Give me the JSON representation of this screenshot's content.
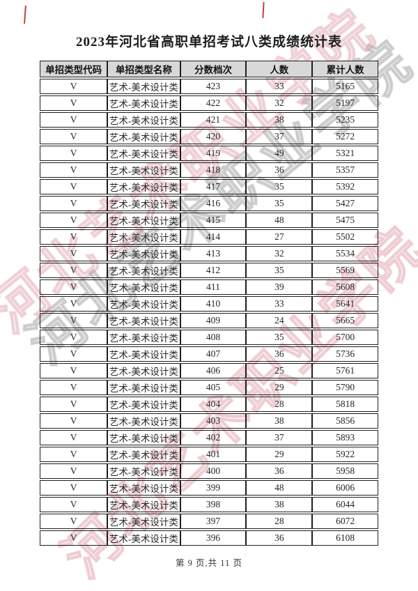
{
  "page": {
    "title": "2023年河北省高职单招考试八类成绩统计表",
    "footer": "第 9 页,共 11 页"
  },
  "watermark": {
    "text": "河北艺术职业学院",
    "gray_color": "#a0a0a0",
    "pink_color": "#db96a0",
    "red_mark_color": "#c04040"
  },
  "table": {
    "headers": [
      "单招类型代码",
      "单招类型名称",
      "分数档次",
      "人数",
      "累计人数"
    ],
    "rows": [
      {
        "code": "V",
        "name": "艺术-美术设计类",
        "score": "423",
        "count": "33",
        "cumulative": "5165"
      },
      {
        "code": "V",
        "name": "艺术-美术设计类",
        "score": "422",
        "count": "32",
        "cumulative": "5197"
      },
      {
        "code": "V",
        "name": "艺术-美术设计类",
        "score": "421",
        "count": "38",
        "cumulative": "5235"
      },
      {
        "code": "V",
        "name": "艺术-美术设计类",
        "score": "420",
        "count": "37",
        "cumulative": "5272"
      },
      {
        "code": "V",
        "name": "艺术-美术设计类",
        "score": "419",
        "count": "49",
        "cumulative": "5321"
      },
      {
        "code": "V",
        "name": "艺术-美术设计类",
        "score": "418",
        "count": "36",
        "cumulative": "5357"
      },
      {
        "code": "V",
        "name": "艺术-美术设计类",
        "score": "417",
        "count": "35",
        "cumulative": "5392"
      },
      {
        "code": "V",
        "name": "艺术-美术设计类",
        "score": "416",
        "count": "35",
        "cumulative": "5427"
      },
      {
        "code": "V",
        "name": "艺术-美术设计类",
        "score": "415",
        "count": "48",
        "cumulative": "5475"
      },
      {
        "code": "V",
        "name": "艺术-美术设计类",
        "score": "414",
        "count": "27",
        "cumulative": "5502"
      },
      {
        "code": "V",
        "name": "艺术-美术设计类",
        "score": "413",
        "count": "32",
        "cumulative": "5534"
      },
      {
        "code": "V",
        "name": "艺术-美术设计类",
        "score": "412",
        "count": "35",
        "cumulative": "5569"
      },
      {
        "code": "V",
        "name": "艺术-美术设计类",
        "score": "411",
        "count": "39",
        "cumulative": "5608"
      },
      {
        "code": "V",
        "name": "艺术-美术设计类",
        "score": "410",
        "count": "33",
        "cumulative": "5641"
      },
      {
        "code": "V",
        "name": "艺术-美术设计类",
        "score": "409",
        "count": "24",
        "cumulative": "5665"
      },
      {
        "code": "V",
        "name": "艺术-美术设计类",
        "score": "408",
        "count": "35",
        "cumulative": "5700"
      },
      {
        "code": "V",
        "name": "艺术-美术设计类",
        "score": "407",
        "count": "36",
        "cumulative": "5736"
      },
      {
        "code": "V",
        "name": "艺术-美术设计类",
        "score": "406",
        "count": "25",
        "cumulative": "5761"
      },
      {
        "code": "V",
        "name": "艺术-美术设计类",
        "score": "405",
        "count": "29",
        "cumulative": "5790"
      },
      {
        "code": "V",
        "name": "艺术-美术设计类",
        "score": "404",
        "count": "28",
        "cumulative": "5818"
      },
      {
        "code": "V",
        "name": "艺术-美术设计类",
        "score": "403",
        "count": "38",
        "cumulative": "5856"
      },
      {
        "code": "V",
        "name": "艺术-美术设计类",
        "score": "402",
        "count": "37",
        "cumulative": "5893"
      },
      {
        "code": "V",
        "name": "艺术-美术设计类",
        "score": "401",
        "count": "29",
        "cumulative": "5922"
      },
      {
        "code": "V",
        "name": "艺术-美术设计类",
        "score": "400",
        "count": "36",
        "cumulative": "5958"
      },
      {
        "code": "V",
        "name": "艺术-美术设计类",
        "score": "399",
        "count": "48",
        "cumulative": "6006"
      },
      {
        "code": "V",
        "name": "艺术-美术设计类",
        "score": "398",
        "count": "38",
        "cumulative": "6044"
      },
      {
        "code": "V",
        "name": "艺术-美术设计类",
        "score": "397",
        "count": "28",
        "cumulative": "6072"
      },
      {
        "code": "V",
        "name": "艺术-美术设计类",
        "score": "396",
        "count": "36",
        "cumulative": "6108"
      }
    ]
  }
}
